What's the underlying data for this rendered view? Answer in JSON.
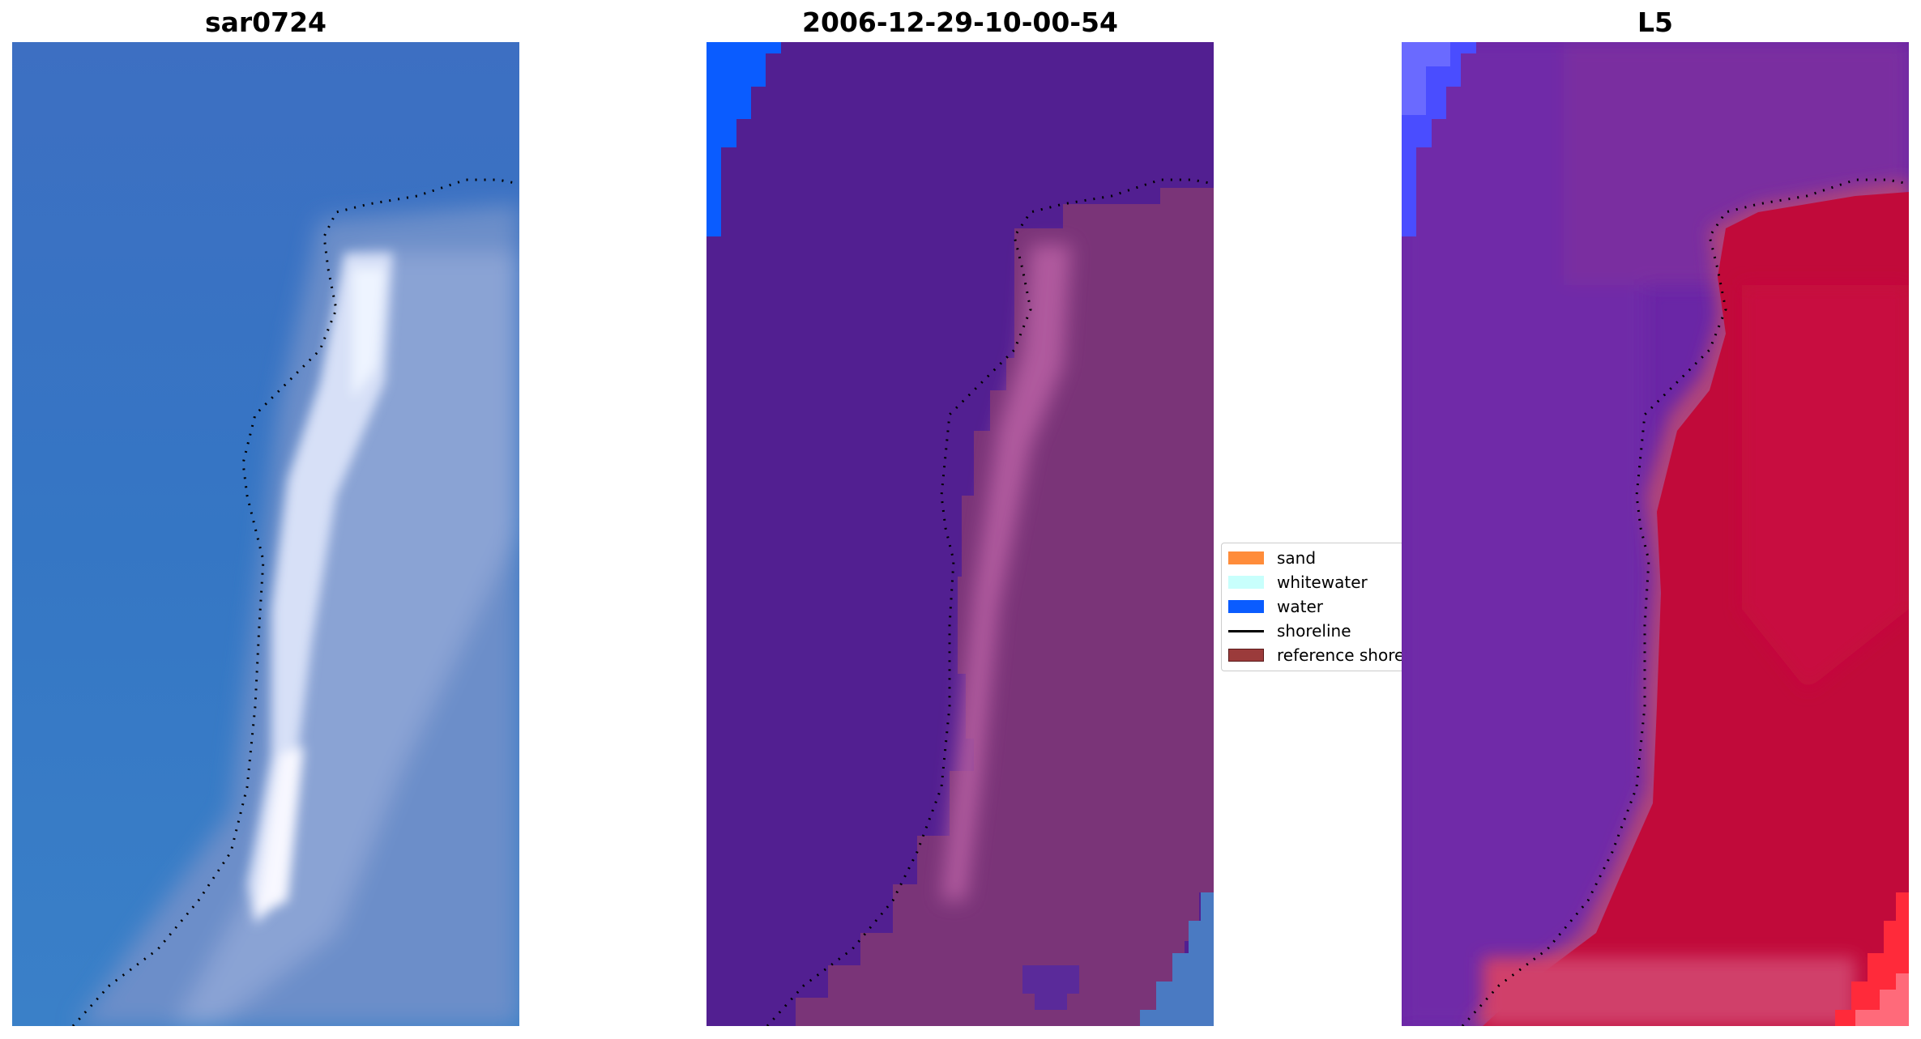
{
  "panels": [
    {
      "title": "sar0724"
    },
    {
      "title": "2006-12-29-10-00-54"
    },
    {
      "title": "L5"
    }
  ],
  "legend": {
    "entries": [
      {
        "label": "sand",
        "color": "#ff8c3a",
        "kind": "patch"
      },
      {
        "label": "whitewater",
        "color": "#c8fffc",
        "kind": "patch"
      },
      {
        "label": "water",
        "color": "#0a5cff",
        "kind": "patch"
      },
      {
        "label": "shoreline",
        "color": "#000000",
        "kind": "line"
      },
      {
        "label": "reference shoreline",
        "color": "#9b3b3b",
        "kind": "patch"
      }
    ]
  },
  "colors": {
    "rgb_water": "#3a73c2",
    "rgb_surf": "#e8eefc",
    "class_background": "#521f91",
    "class_land": "#7a3478",
    "class_water": "#0a5cff",
    "index_low": "#6a26a6",
    "index_high": "#c10a3a"
  }
}
